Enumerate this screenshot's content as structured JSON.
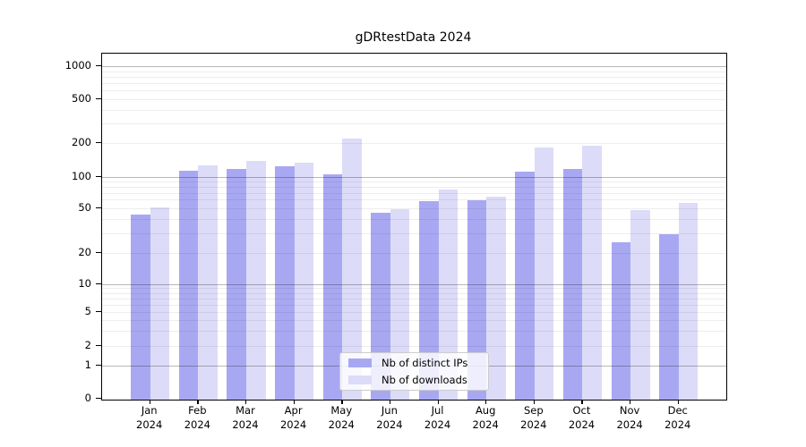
{
  "figure": {
    "title": "gDRtestData 2024"
  },
  "chart_data": {
    "type": "bar",
    "title": "gDRtestData 2024",
    "categories": [
      "Jan 2024",
      "Feb 2024",
      "Mar 2024",
      "Apr 2024",
      "May 2024",
      "Jun 2024",
      "Jul 2024",
      "Aug 2024",
      "Sep 2024",
      "Oct 2024",
      "Nov 2024",
      "Dec 2024"
    ],
    "series": [
      {
        "name": "Nb of distinct IPs",
        "color": "#a8a8f2",
        "values": [
          44,
          114,
          118,
          125,
          106,
          45,
          58,
          60,
          112,
          117,
          25,
          29
        ]
      },
      {
        "name": "Nb of downloads",
        "color": "#dcdcf8",
        "values": [
          51,
          127,
          138,
          134,
          218,
          49,
          76,
          64,
          182,
          190,
          48,
          56
        ]
      }
    ],
    "xlabel": "",
    "ylabel": "",
    "y_axis": {
      "scale": "symlog",
      "tick_values": [
        0,
        1,
        2,
        5,
        10,
        20,
        50,
        100,
        200,
        500,
        1000
      ],
      "tick_labels": [
        "0",
        "1",
        "2",
        "5",
        "10",
        "20",
        "50",
        "100",
        "200",
        "500",
        "1000"
      ],
      "ylim": [
        0,
        1300
      ]
    },
    "grid": "horizontal log major+minor gridlines drawn over bars",
    "legend_position": "lower center inside plot"
  },
  "legend": {
    "items": [
      {
        "label": "Nb of distinct IPs"
      },
      {
        "label": "Nb of downloads"
      }
    ]
  }
}
